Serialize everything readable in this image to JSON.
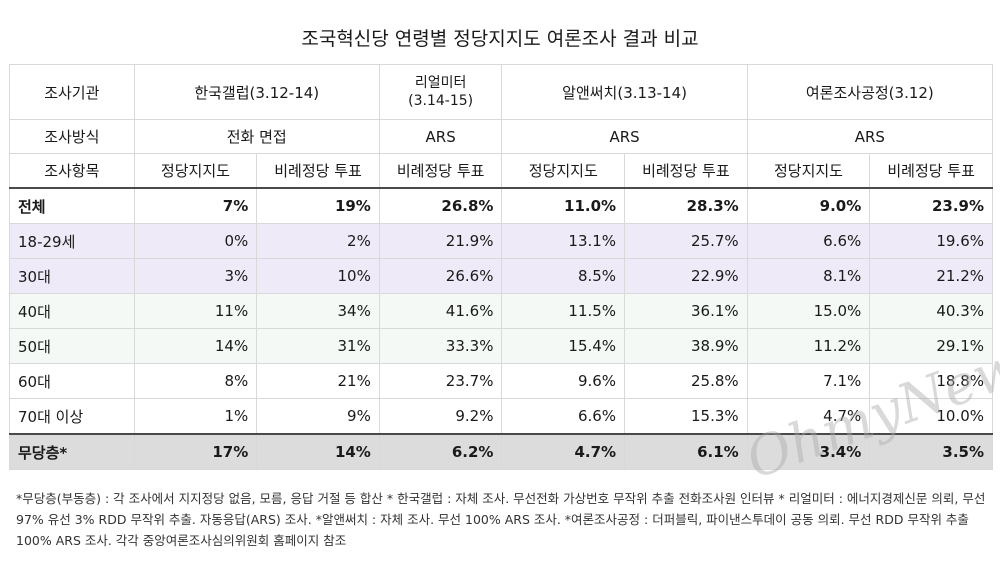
{
  "title": "조국혁신당 연령별 정당지지도 여론조사 결과 비교",
  "header": {
    "agency_label": "조사기관",
    "method_label": "조사방식",
    "item_label": "조사항목",
    "agencies": [
      {
        "name": "한국갤럽(3.12-14)"
      },
      {
        "name_line1": "리얼미터",
        "name_line2": "(3.14-15)"
      },
      {
        "name": "알앤써치(3.13-14)"
      },
      {
        "name": "여론조사공정(3.12)"
      }
    ],
    "methods": [
      "전화 면접",
      "ARS",
      "ARS",
      "ARS"
    ],
    "items": [
      "정당지지도",
      "비례정당 투표",
      "비례정당 투표",
      "정당지지도",
      "비례정당 투표",
      "정당지지도",
      "비례정당 투표"
    ]
  },
  "rows": [
    {
      "label": "전체",
      "values": [
        "7%",
        "19%",
        "26.8%",
        "11.0%",
        "28.3%",
        "9.0%",
        "23.9%"
      ]
    },
    {
      "label": "18-29세",
      "values": [
        "0%",
        "2%",
        "21.9%",
        "13.1%",
        "25.7%",
        "6.6%",
        "19.6%"
      ]
    },
    {
      "label": "30대",
      "values": [
        "3%",
        "10%",
        "26.6%",
        "8.5%",
        "22.9%",
        "8.1%",
        "21.2%"
      ]
    },
    {
      "label": "40대",
      "values": [
        "11%",
        "34%",
        "41.6%",
        "11.5%",
        "36.1%",
        "15.0%",
        "40.3%"
      ]
    },
    {
      "label": "50대",
      "values": [
        "14%",
        "31%",
        "33.3%",
        "15.4%",
        "38.9%",
        "11.2%",
        "29.1%"
      ]
    },
    {
      "label": "60대",
      "values": [
        "8%",
        "21%",
        "23.7%",
        "9.6%",
        "25.8%",
        "7.1%",
        "18.8%"
      ]
    },
    {
      "label": "70대 이상",
      "values": [
        "1%",
        "9%",
        "9.2%",
        "6.6%",
        "15.3%",
        "4.7%",
        "10.0%"
      ]
    },
    {
      "label": "무당층*",
      "values": [
        "17%",
        "14%",
        "6.2%",
        "4.7%",
        "6.1%",
        "3.4%",
        "3.5%"
      ]
    }
  ],
  "footnote": "*무당층(부동층) : 각 조사에서 지지정당 없음, 모름, 응답 거절 등 합산 * 한국갤럽 : 자체 조사. 무선전화 가상번호 무작위 추출 전화조사원 인터뷰 * 리얼미터 : 에너지경제신문 의뢰, 무선 97% 유선 3% RDD 무작위 추출. 자동응답(ARS) 조사. *알앤써치 : 자체 조사. 무선 100% ARS 조사. *여론조사공정 : 더퍼블릭, 파이낸스투데이 공동 의뢰. 무선 RDD 무작위 추출 100% ARS 조사. 각각 중앙여론조사심의위원회 홈페이지 참조",
  "watermark": "OhmyNews",
  "colors": {
    "youth_row_bg": "#eeeaf7",
    "middle_row_bg": "#f4f9f6",
    "independent_row_bg": "#dcdcdc"
  }
}
